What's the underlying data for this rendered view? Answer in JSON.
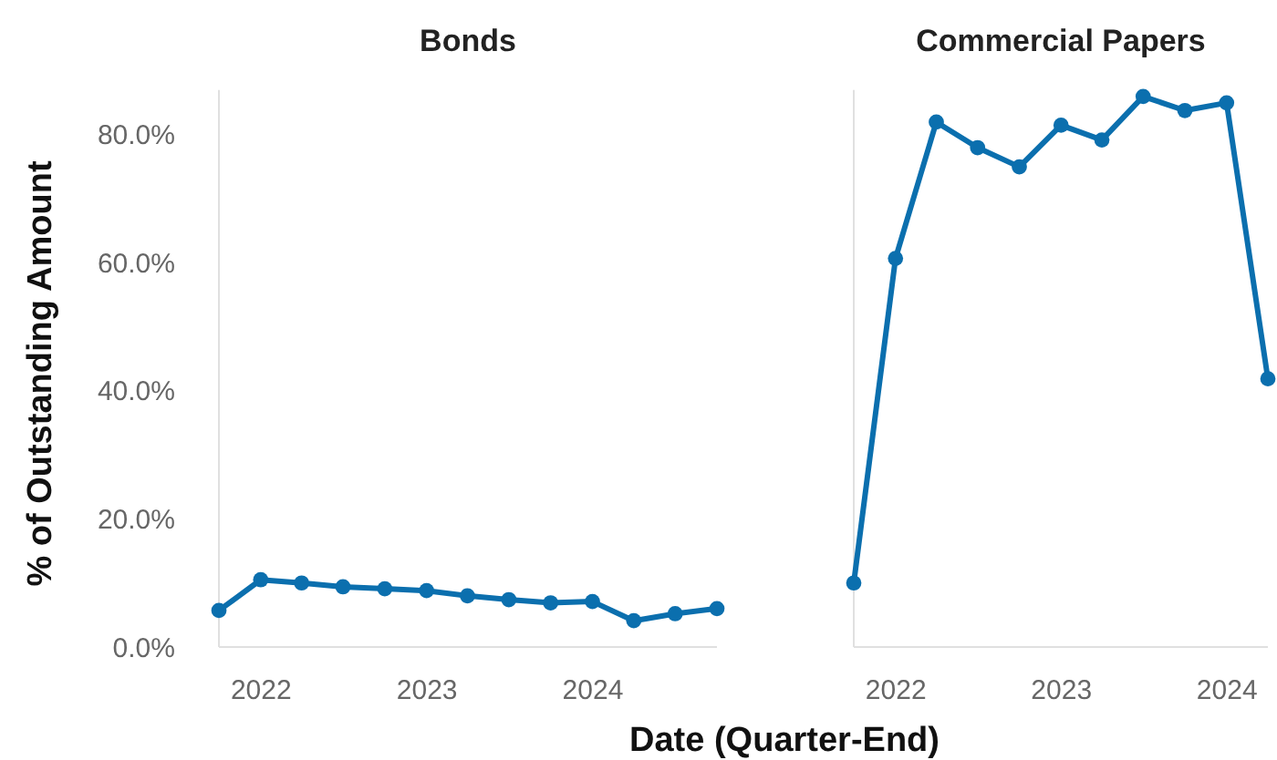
{
  "chart_data": [
    {
      "type": "line",
      "title": "Bonds",
      "ylabel": "% of Outstanding Amount",
      "xlabel": "Date (Quarter-End)",
      "marker": "circle",
      "line_style": "solid",
      "x": [
        "2021-09-30",
        "2021-12-31",
        "2022-03-31",
        "2022-06-30",
        "2022-09-30",
        "2022-12-31",
        "2023-03-31",
        "2023-06-30",
        "2023-09-30",
        "2023-12-31",
        "2024-03-31",
        "2024-06-30",
        "2024-09-30"
      ],
      "series": [
        {
          "color": "#0b6fae",
          "values": [
            5.7,
            10.5,
            10.0,
            9.4,
            9.1,
            8.8,
            8.0,
            7.4,
            6.9,
            7.1,
            4.1,
            5.2,
            6.0
          ]
        }
      ],
      "xlim": [
        "2021-09-30",
        "2024-09-30"
      ],
      "xticks": [
        "2022",
        "2023",
        "2024"
      ],
      "ylim": [
        0,
        87
      ],
      "yticks": [
        {
          "value": 0,
          "label": "0.0%"
        },
        {
          "value": 20,
          "label": "20.0%"
        },
        {
          "value": 40,
          "label": "40.0%"
        },
        {
          "value": 60,
          "label": "60.0%"
        },
        {
          "value": 80,
          "label": "80.0%"
        }
      ]
    },
    {
      "type": "line",
      "title": "Commercial Papers",
      "marker": "circle",
      "line_style": "solid",
      "tick_labels": "x",
      "x": [
        "2021-09-30",
        "2021-12-31",
        "2022-03-31",
        "2022-06-30",
        "2022-09-30",
        "2022-12-31",
        "2023-03-31",
        "2023-06-30",
        "2023-09-30",
        "2023-12-31",
        "2024-03-31"
      ],
      "series": [
        {
          "color": "#0b6fae",
          "values": [
            10.0,
            60.7,
            82.0,
            78.0,
            75.0,
            81.5,
            79.2,
            86.0,
            83.8,
            85.0,
            41.9
          ]
        }
      ],
      "xlim": [
        "2021-09-30",
        "2024-03-31"
      ],
      "xticks": [
        "2022",
        "2023",
        "2024"
      ],
      "ylim": [
        0,
        87
      ]
    }
  ]
}
